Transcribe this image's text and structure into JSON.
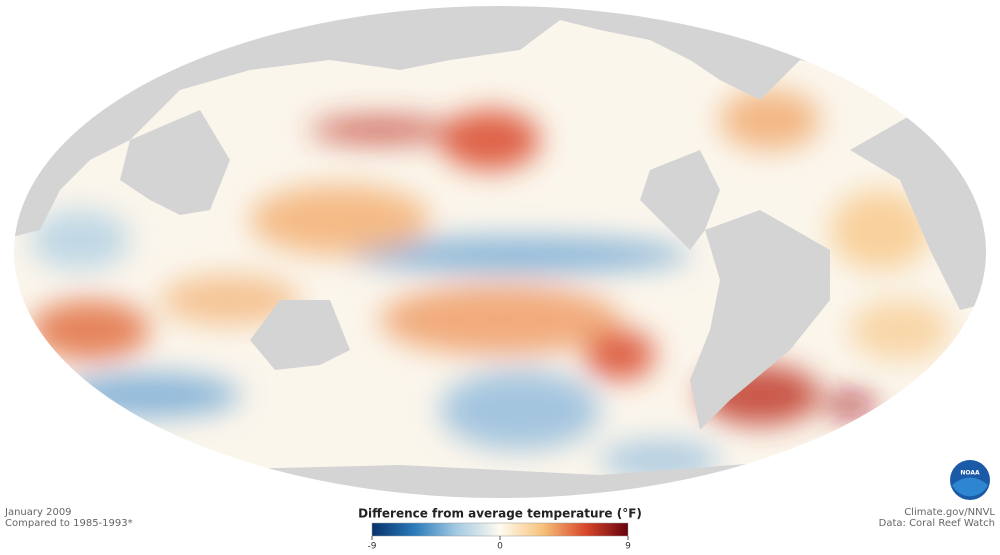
{
  "map": {
    "date": "January 2009",
    "baseline": "Compared to 1985-1993*",
    "credit": "Climate.gov/NNVL",
    "source": "Data: Coral Reef Watch",
    "logo_text": "NOAA",
    "colorbar": {
      "title": "Difference from average temperature (°F)",
      "lim": [
        -9,
        9
      ],
      "ticks": [
        -9,
        0,
        9
      ],
      "colors": [
        "#08306b",
        "#2b7bba",
        "#a6cbe3",
        "#fffbf0",
        "#f6c27a",
        "#d9482b",
        "#67000d"
      ]
    }
  }
}
